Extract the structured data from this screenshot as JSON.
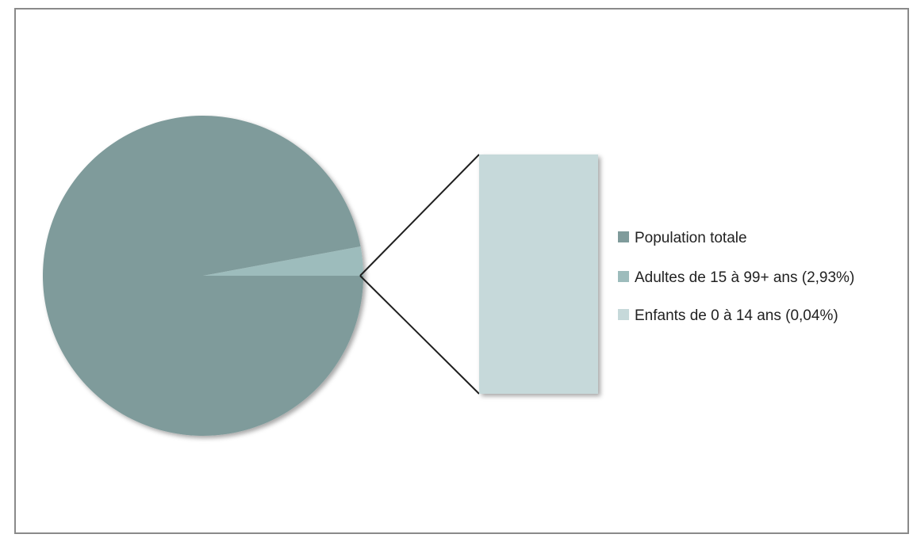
{
  "chart_data": {
    "type": "bar-of-pie",
    "title": "",
    "legend_position": "right",
    "pie": {
      "slices": [
        {
          "name": "Population totale",
          "percent": 97.03,
          "color": "#7f9b9b"
        },
        {
          "name": "Adultes de 15 à 99+ ans (2,93%)",
          "percent": 2.93,
          "color": "#9dbcbc"
        }
      ]
    },
    "bar": {
      "name": "Enfants  de 0 à 14 ans (0,04%)",
      "percent": 0.04,
      "color": "#c6d9da"
    },
    "legend": [
      {
        "label": "Population totale",
        "color": "#7f9b9b"
      },
      {
        "label": "Adultes de 15 à 99+ ans (2,93%)",
        "color": "#9dbcbc"
      },
      {
        "label": "Enfants  de 0 à 14 ans (0,04%)",
        "color": "#c6d9da"
      }
    ]
  }
}
